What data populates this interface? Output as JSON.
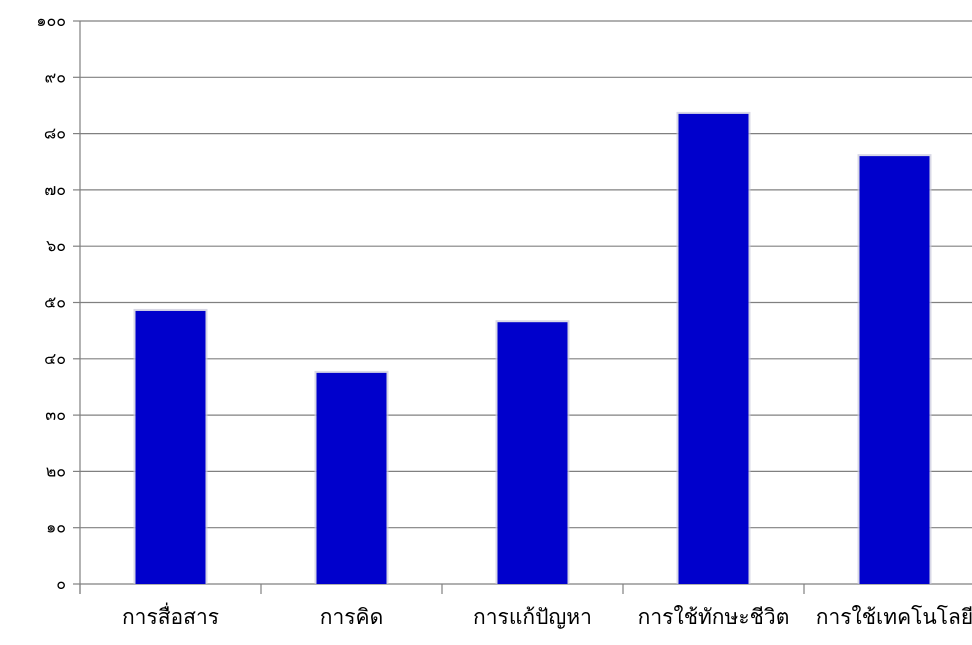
{
  "chart_data": {
    "type": "bar",
    "title": "",
    "xlabel": "",
    "ylabel": "",
    "categories": [
      "การสื่อสาร",
      "การคิด",
      "การแก้ปัญหา",
      "การใช้ทักษะชีวิต",
      "การใช้เทคโนโลยี"
    ],
    "values": [
      48.5,
      37.5,
      46.5,
      83.5,
      76
    ],
    "ylim": [
      0,
      100
    ],
    "yticks": [
      0,
      10,
      20,
      30,
      40,
      50,
      60,
      70,
      80,
      90,
      100
    ],
    "ytick_labels": [
      "๐",
      "๑๐",
      "๒๐",
      "๓๐",
      "๔๐",
      "๕๐",
      "๖๐",
      "๗๐",
      "๘๐",
      "๙๐",
      "๑๐๐"
    ],
    "grid": true,
    "legend": "none",
    "colors": {
      "bar": "#0000cc",
      "bar_shadow": "#c8c8dc",
      "grid": "#808080",
      "axis": "#808080"
    }
  }
}
